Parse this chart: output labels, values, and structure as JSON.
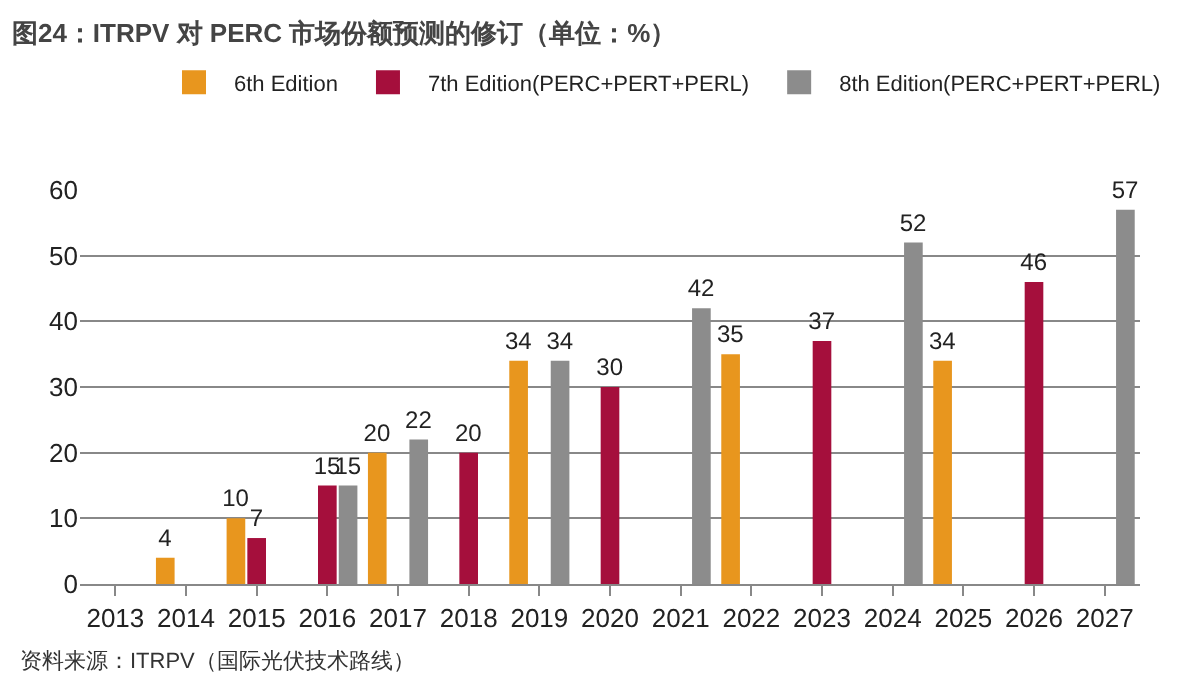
{
  "chart_data": {
    "type": "bar",
    "title": "图24：ITRPV 对 PERC 市场份额预测的修订（单位：%）",
    "categories": [
      "2013",
      "2014",
      "2015",
      "2016",
      "2017",
      "2018",
      "2019",
      "2020",
      "2021",
      "2022",
      "2023",
      "2024",
      "2025",
      "2026",
      "2027"
    ],
    "series": [
      {
        "name": "6th Edition",
        "color": "#e8961e",
        "values": [
          null,
          4,
          10,
          null,
          20,
          null,
          34,
          null,
          null,
          35,
          null,
          null,
          34,
          null,
          null
        ]
      },
      {
        "name": "7th Edition(PERC+PERT+PERL)",
        "color": "#a50f3c",
        "values": [
          null,
          null,
          7,
          15,
          null,
          20,
          null,
          30,
          null,
          null,
          37,
          null,
          null,
          46,
          null
        ]
      },
      {
        "name": "8th Edition(PERC+PERT+PERL)",
        "color": "#8c8c8c",
        "values": [
          null,
          null,
          null,
          15,
          22,
          null,
          34,
          null,
          42,
          null,
          null,
          52,
          null,
          null,
          57
        ]
      }
    ],
    "ylim": [
      0,
      60
    ],
    "yticks": [
      0,
      10,
      20,
      30,
      40,
      50,
      60
    ],
    "grid": "y",
    "legend": "top",
    "data_labels": true,
    "annotations": [
      "资料来源：ITRPV（国际光伏技术路线）"
    ]
  }
}
